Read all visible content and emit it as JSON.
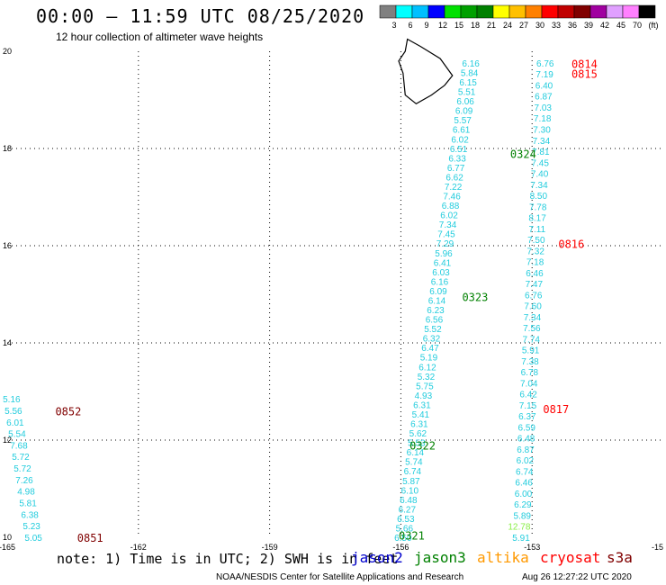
{
  "header": {
    "title": "00:00 – 11:59 UTC 08/25/2020",
    "subtitle": "12 hour collection of altimeter wave heights"
  },
  "colorbar": {
    "ticks": [
      "3",
      "6",
      "9",
      "12",
      "15",
      "18",
      "21",
      "24",
      "27",
      "30",
      "33",
      "36",
      "39",
      "42",
      "45",
      "70",
      "(ft)"
    ],
    "colors": [
      "#808080",
      "#00ffff",
      "#00c0ff",
      "#0000ff",
      "#00e000",
      "#00a000",
      "#008000",
      "#ffff00",
      "#ffc000",
      "#ff8000",
      "#ff0000",
      "#c00000",
      "#800000",
      "#a000a0",
      "#e0a0ff",
      "#ff80ff",
      "#000000"
    ]
  },
  "footer": {
    "note": "note: 1) Time is in UTC; 2) SWH is in feet",
    "credit": "NOAA/NESDIS Center for Satellite Applications and Research",
    "stamp": "Aug 26 12:27:22 UTC 2020",
    "missions": [
      {
        "name": "jason2",
        "color": "#0000cc"
      },
      {
        "name": "jason3",
        "color": "#008000"
      },
      {
        "name": "altika",
        "color": "#ff9900"
      },
      {
        "name": "cryosat",
        "color": "#ff0000"
      },
      {
        "name": "s3a",
        "color": "#800000"
      }
    ]
  },
  "chart_data": {
    "type": "scatter",
    "title": "12 hour collection of altimeter wave heights",
    "xlabel": "",
    "ylabel": "",
    "xlim": [
      -165,
      -150
    ],
    "ylim": [
      10,
      20
    ],
    "x_ticks": [
      "-165",
      "-162",
      "-159",
      "-156",
      "-153",
      "-15"
    ],
    "y_ticks": [
      "10",
      "12",
      "14",
      "16",
      "18",
      "20"
    ],
    "grid": true,
    "value_colors": {
      "cyan": "#22ccdd",
      "light_green": "#88ee44"
    },
    "tracks": [
      {
        "x_start": -154.2,
        "y_start": 19.76,
        "x_end": -155.75,
        "y_end": 10.0,
        "color": "cyan",
        "values": [
          "6.16",
          "5.84",
          "6.15",
          "5.51",
          "6.06",
          "6.09",
          "5.57",
          "6.61",
          "6.02",
          "6.51",
          "6.33",
          "6.77",
          "6.62",
          "7.22",
          "7.46",
          "6.88",
          "6.02",
          "7.34",
          "7.45",
          "7.29",
          "5.96",
          "6.41",
          "6.03",
          "6.16",
          "6.09",
          "6.14",
          "6.23",
          "6.56",
          "5.52",
          "6.32",
          "6.47",
          "5.19",
          "6.12",
          "5.32",
          "5.75",
          "4.93",
          "6.31",
          "5.41",
          "6.31",
          "5.62",
          "5.53",
          "6.14",
          "5.74",
          "6.74",
          "5.87",
          "6.10",
          "6.48",
          "6.27",
          "6.53",
          "5.66",
          "6.50"
        ]
      },
      {
        "x_start": -152.5,
        "y_start": 19.76,
        "x_end": -153.05,
        "y_end": 10.0,
        "color": "cyan",
        "values": [
          "6.76",
          "7.19",
          "6.40",
          "6.87",
          "7.03",
          "7.18",
          "7.30",
          "7.34",
          "7.81",
          "7.45",
          "7.40",
          "7.34",
          "8.50",
          "7.78",
          "8.17",
          "7.11",
          "7.50",
          "7.32",
          "7.18",
          "6.46",
          "7.47",
          "6.76",
          "7.60",
          "7.34",
          "7.56",
          "7.74",
          "5.91",
          "7.38",
          "6.78",
          "7.04",
          "6.42",
          "7.15",
          "6.37",
          "6.59",
          "6.48",
          "6.87",
          "6.02",
          "6.74",
          "6.46",
          "6.00",
          "6.29",
          "5.89",
          "12.78",
          "5.91"
        ],
        "highlight": {
          "value": "12.78",
          "color": "light_green"
        }
      },
      {
        "x_start": -164.7,
        "y_start": 12.85,
        "x_end": -164.2,
        "y_end": 10.0,
        "color": "cyan",
        "values": [
          "5.16",
          "5.56",
          "6.01",
          "5.54",
          "7.68",
          "5.72",
          "5.72",
          "7.26",
          "4.98",
          "5.81",
          "6.38",
          "5.23",
          "5.05"
        ]
      }
    ],
    "time_labels": [
      {
        "text": "0814",
        "color": "#ff0000",
        "x": -152.1,
        "y": 19.75
      },
      {
        "text": "0815",
        "color": "#ff0000",
        "x": -152.1,
        "y": 19.55
      },
      {
        "text": "0816",
        "color": "#ff0000",
        "x": -152.4,
        "y": 16.05
      },
      {
        "text": "0817",
        "color": "#ff0000",
        "x": -152.75,
        "y": 12.65
      },
      {
        "text": "0324",
        "color": "#008000",
        "x": -153.5,
        "y": 17.9
      },
      {
        "text": "0323",
        "color": "#008000",
        "x": -154.6,
        "y": 14.95
      },
      {
        "text": "0322",
        "color": "#008000",
        "x": -155.8,
        "y": 11.9
      },
      {
        "text": "0321",
        "color": "#008000",
        "x": -156.05,
        "y": 10.05
      },
      {
        "text": "0852",
        "color": "#800000",
        "x": -163.9,
        "y": 12.6
      },
      {
        "text": "0851",
        "color": "#800000",
        "x": -163.4,
        "y": 10.0
      }
    ],
    "island": {
      "outline": [
        [
          -155.85,
          20.25
        ],
        [
          -155.55,
          20.1
        ],
        [
          -155.1,
          19.85
        ],
        [
          -154.82,
          19.5
        ],
        [
          -155.0,
          19.3
        ],
        [
          -155.3,
          19.1
        ],
        [
          -155.65,
          18.92
        ],
        [
          -155.9,
          19.1
        ],
        [
          -155.95,
          19.55
        ],
        [
          -156.05,
          19.8
        ],
        [
          -155.9,
          20.0
        ]
      ]
    }
  }
}
